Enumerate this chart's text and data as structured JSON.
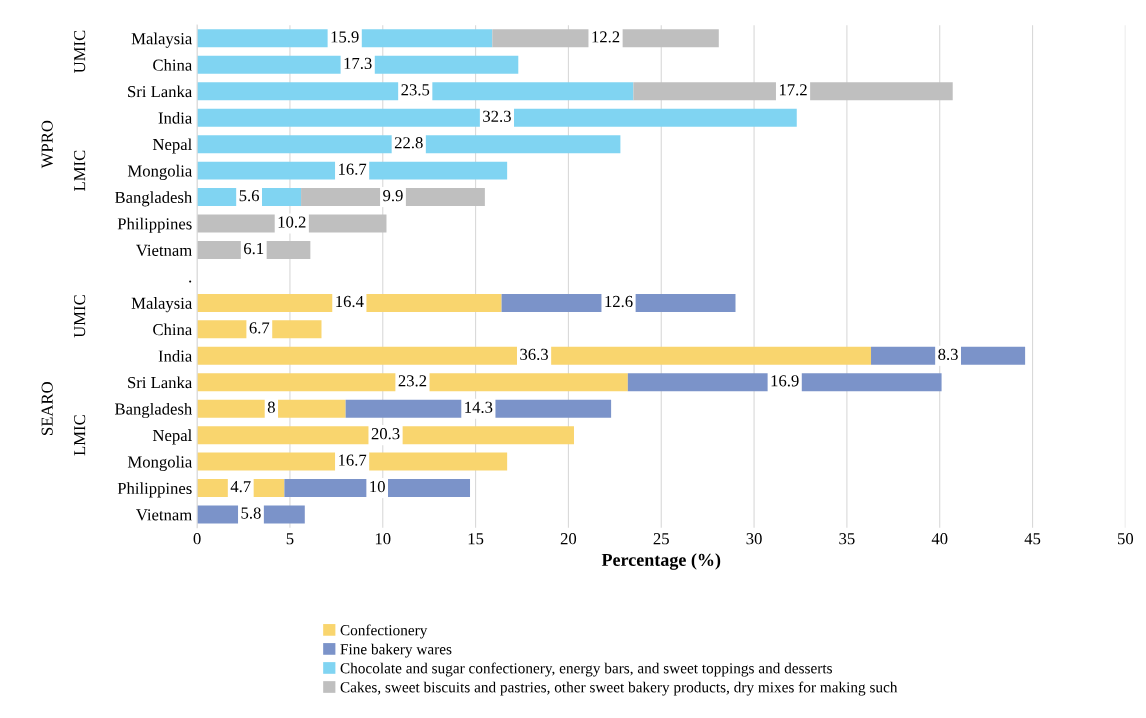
{
  "chart_data": {
    "type": "bar",
    "orientation": "horizontal",
    "stacked": true,
    "xlabel": "Percentage (%)",
    "categories": [
      "Malaysia",
      "China",
      "Sri Lanka",
      "India",
      "Nepal",
      "Mongolia",
      "Bangladesh",
      "Philippines",
      "Vietnam",
      ".",
      "Malaysia",
      "China",
      "India",
      "Sri Lanka",
      "Bangladesh",
      "Nepal",
      "Mongolia",
      "Philippines",
      "Vietnam"
    ],
    "series": [
      {
        "name": "Confectionery",
        "color": "#f9d56e",
        "values": [
          null,
          null,
          null,
          null,
          null,
          null,
          null,
          null,
          null,
          null,
          16.4,
          6.7,
          36.3,
          23.2,
          8,
          20.3,
          16.7,
          4.7,
          null
        ]
      },
      {
        "name": "Fine bakery wares",
        "color": "#7b93c9",
        "values": [
          null,
          null,
          null,
          null,
          null,
          null,
          null,
          null,
          null,
          null,
          12.6,
          null,
          8.3,
          16.9,
          14.3,
          null,
          null,
          10,
          5.8
        ]
      },
      {
        "name": "Chocolate and sugar confectionery, energy bars, and sweet toppings and desserts",
        "color": "#80d4f2",
        "values": [
          15.9,
          17.3,
          23.5,
          32.3,
          22.8,
          16.7,
          5.6,
          null,
          null,
          null,
          null,
          null,
          null,
          null,
          null,
          null,
          null,
          null,
          null
        ]
      },
      {
        "name": "Cakes, sweet biscuits and pastries, other sweet bakery products, dry mixes for making such",
        "color": "#bfbfbf",
        "values": [
          12.2,
          null,
          17.2,
          null,
          null,
          null,
          9.9,
          10.2,
          6.1,
          null,
          null,
          null,
          null,
          null,
          null,
          null,
          null,
          null,
          null
        ]
      }
    ],
    "xlim": [
      0,
      50
    ],
    "xticks": [
      0,
      5,
      10,
      15,
      20,
      25,
      30,
      35,
      40,
      45,
      50
    ],
    "grid": "x",
    "legend": "bottom",
    "data_labels": true,
    "annotations": [
      "WPRO",
      "UMIC",
      "LMIC",
      "SEARO",
      "UMIC",
      "LMIC"
    ]
  }
}
